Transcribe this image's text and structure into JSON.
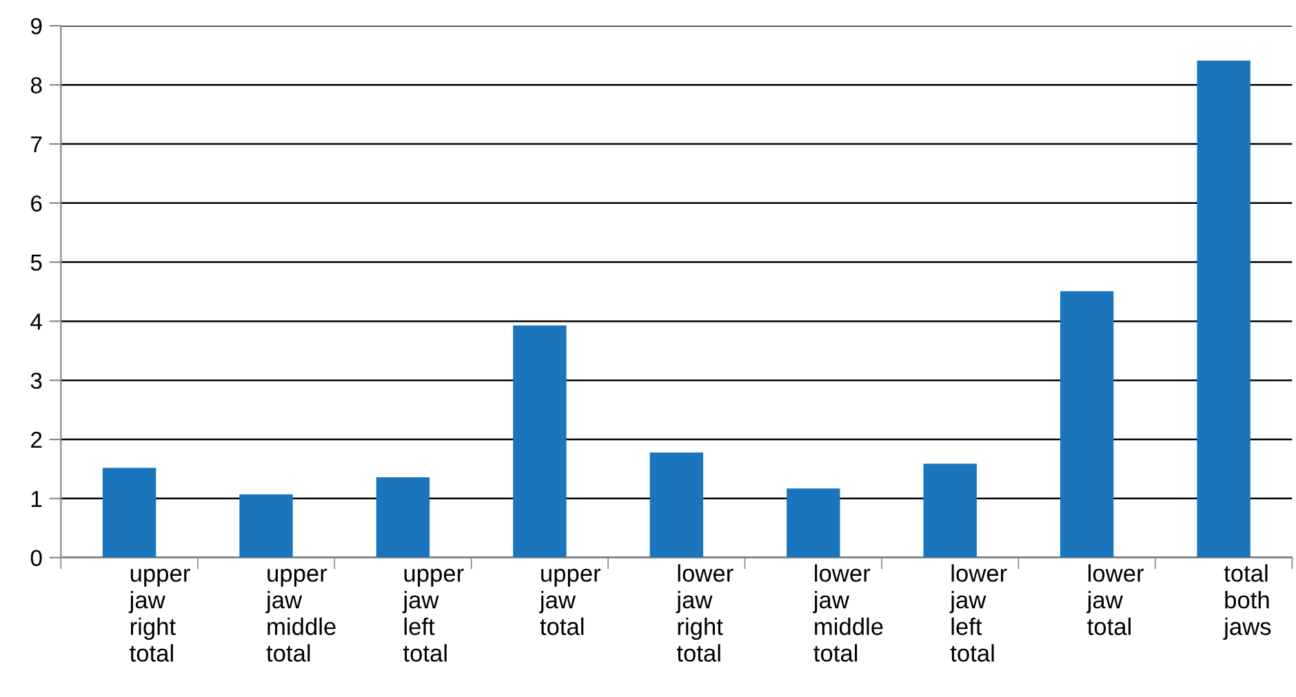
{
  "chart_data": {
    "type": "bar",
    "categories": [
      "upper\njaw\nright\ntotal",
      "upper\njaw\nmiddle\ntotal",
      "upper\njaw\nleft\ntotal",
      "upper\njaw\ntotal",
      "lower\njaw\nright\ntotal",
      "lower\njaw\nmiddle\ntotal",
      "lower\njaw\nleft\ntotal",
      "lower\njaw\ntotal",
      "total\nboth\njaws"
    ],
    "values": [
      1.52,
      1.07,
      1.36,
      3.93,
      1.78,
      1.17,
      1.59,
      4.51,
      8.41
    ],
    "color": "#1b75bc",
    "ylim": [
      0,
      9
    ],
    "yticks": [
      0,
      1,
      2,
      3,
      4,
      5,
      6,
      7,
      8,
      9
    ],
    "grid": "y"
  }
}
